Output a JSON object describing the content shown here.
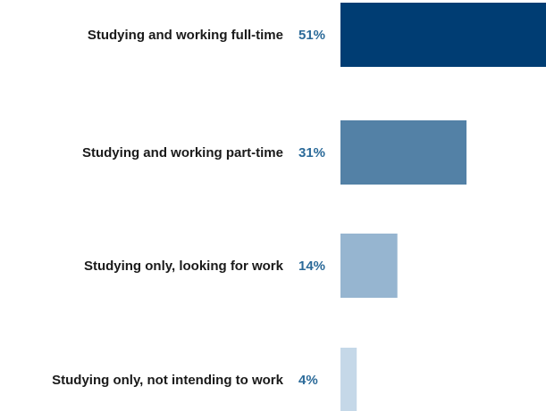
{
  "chart_data": {
    "type": "bar",
    "orientation": "horizontal",
    "categories": [
      "Studying and working full-time",
      "Studying and working part-time",
      "Studying only, looking for work",
      "Studying only, not intending to work"
    ],
    "values": [
      51,
      31,
      14,
      4
    ],
    "value_labels": [
      "51%",
      "31%",
      "14%",
      "4%"
    ],
    "bar_colors": [
      "#003d73",
      "#5381a6",
      "#96b5d0",
      "#c5d8e8"
    ],
    "value_label_color": "#2b6a99",
    "grid": false,
    "legend": "none"
  }
}
